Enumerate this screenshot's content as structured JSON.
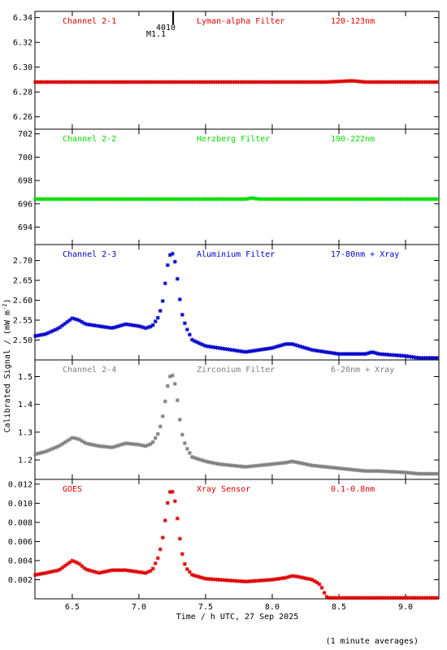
{
  "chart_data": [
    {
      "type": "scatter",
      "panel_labels": {
        "channel": "Channel 2-1",
        "filter": "Lyman-alpha Filter",
        "band": "120-123nm"
      },
      "color": "#dd0000",
      "ylim": [
        6.25,
        6.345
      ],
      "yticks": [
        6.26,
        6.28,
        6.3,
        6.32,
        6.34
      ],
      "ytick_labels": [
        "6.26",
        "6.28",
        "6.30",
        "6.32",
        "6.34"
      ],
      "series": [
        {
          "x": [
            6.22,
            8.4,
            8.6,
            8.7,
            9.25
          ],
          "y": [
            6.288,
            6.288,
            6.289,
            6.288,
            6.288
          ]
        }
      ]
    },
    {
      "type": "scatter",
      "panel_labels": {
        "channel": "Channel 2-2",
        "filter": "Herzberg Filter",
        "band": "190-222nm"
      },
      "color": "#00dd00",
      "ylim": [
        692.5,
        702.4
      ],
      "yticks": [
        694,
        696,
        698,
        700,
        702
      ],
      "ytick_labels": [
        "694",
        "696",
        "698",
        "700",
        "702"
      ],
      "series": [
        {
          "x": [
            6.22,
            7.8,
            7.85,
            7.9,
            9.25
          ],
          "y": [
            696.4,
            696.4,
            696.5,
            696.4,
            696.4
          ]
        }
      ]
    },
    {
      "type": "scatter",
      "panel_labels": {
        "channel": "Channel 2-3",
        "filter": "Aluminium Filter",
        "band": "17-80nm + Xray"
      },
      "color": "#0000cc",
      "ylim": [
        2.45,
        2.74
      ],
      "yticks": [
        2.5,
        2.55,
        2.6,
        2.65,
        2.7
      ],
      "ytick_labels": [
        "2.50",
        "2.55",
        "2.60",
        "2.65",
        "2.70"
      ],
      "series": [
        {
          "x": [
            6.22,
            6.3,
            6.4,
            6.5,
            6.55,
            6.6,
            6.7,
            6.8,
            6.9,
            7.0,
            7.05,
            7.1,
            7.15,
            7.18,
            7.2,
            7.22,
            7.24,
            7.26,
            7.28,
            7.3,
            7.32,
            7.35,
            7.4,
            7.5,
            7.6,
            7.7,
            7.8,
            7.9,
            8.0,
            8.1,
            8.15,
            8.2,
            8.3,
            8.4,
            8.5,
            8.6,
            8.7,
            8.75,
            8.8,
            9.0,
            9.1,
            9.25
          ],
          "y": [
            2.51,
            2.515,
            2.53,
            2.555,
            2.55,
            2.54,
            2.535,
            2.53,
            2.54,
            2.535,
            2.53,
            2.535,
            2.56,
            2.6,
            2.65,
            2.7,
            2.72,
            2.715,
            2.68,
            2.62,
            2.57,
            2.535,
            2.5,
            2.485,
            2.48,
            2.475,
            2.47,
            2.475,
            2.48,
            2.49,
            2.49,
            2.485,
            2.475,
            2.47,
            2.465,
            2.465,
            2.465,
            2.47,
            2.465,
            2.46,
            2.455,
            2.455
          ]
        }
      ]
    },
    {
      "type": "scatter",
      "panel_labels": {
        "channel": "Channel 2-4",
        "filter": "Zirconium Filter",
        "band": "6-20nm + Xray"
      },
      "color": "#808080",
      "ylim": [
        1.13,
        1.56
      ],
      "yticks": [
        1.2,
        1.3,
        1.4,
        1.5
      ],
      "ytick_labels": [
        "1.2",
        "1.3",
        "1.4",
        "1.5"
      ],
      "series": [
        {
          "x": [
            6.22,
            6.3,
            6.4,
            6.5,
            6.55,
            6.6,
            6.7,
            6.8,
            6.9,
            7.0,
            7.05,
            7.1,
            7.15,
            7.18,
            7.2,
            7.22,
            7.24,
            7.26,
            7.28,
            7.3,
            7.32,
            7.35,
            7.4,
            7.5,
            7.6,
            7.7,
            7.8,
            7.9,
            8.0,
            8.1,
            8.15,
            8.2,
            8.3,
            8.4,
            8.5,
            8.6,
            8.7,
            8.8,
            9.0,
            9.1,
            9.25
          ],
          "y": [
            1.22,
            1.23,
            1.25,
            1.28,
            1.275,
            1.26,
            1.25,
            1.245,
            1.26,
            1.255,
            1.25,
            1.26,
            1.3,
            1.36,
            1.42,
            1.48,
            1.51,
            1.5,
            1.45,
            1.37,
            1.3,
            1.25,
            1.21,
            1.195,
            1.185,
            1.18,
            1.175,
            1.18,
            1.185,
            1.19,
            1.195,
            1.19,
            1.18,
            1.175,
            1.17,
            1.165,
            1.16,
            1.16,
            1.155,
            1.15,
            1.15
          ]
        }
      ]
    },
    {
      "type": "scatter",
      "panel_labels": {
        "channel": "GOES",
        "filter": "Xray Sensor",
        "band": "0.1-0.8nm"
      },
      "color": "#dd0000",
      "ylim": [
        0.0,
        0.0125
      ],
      "yticks": [
        0.002,
        0.004,
        0.006,
        0.008,
        0.01,
        0.012
      ],
      "ytick_labels": [
        "0.002",
        "0.004",
        "0.006",
        "0.008",
        "0.010",
        "0.012"
      ],
      "series": [
        {
          "x": [
            6.22,
            6.3,
            6.4,
            6.5,
            6.55,
            6.6,
            6.7,
            6.8,
            6.9,
            7.0,
            7.05,
            7.1,
            7.15,
            7.18,
            7.2,
            7.22,
            7.24,
            7.26,
            7.28,
            7.3,
            7.32,
            7.35,
            7.4,
            7.5,
            7.6,
            7.7,
            7.8,
            7.9,
            8.0,
            8.1,
            8.15,
            8.2,
            8.3,
            8.35,
            8.38,
            8.4,
            8.42,
            8.5,
            9.0,
            9.25
          ],
          "y": [
            0.0025,
            0.0027,
            0.003,
            0.004,
            0.0037,
            0.0031,
            0.0027,
            0.003,
            0.003,
            0.0028,
            0.0027,
            0.003,
            0.0045,
            0.0065,
            0.0085,
            0.0105,
            0.0115,
            0.011,
            0.0095,
            0.007,
            0.005,
            0.0033,
            0.0025,
            0.0021,
            0.002,
            0.0019,
            0.0018,
            0.0019,
            0.002,
            0.0022,
            0.0024,
            0.0023,
            0.002,
            0.0016,
            0.001,
            0.0003,
            0.0001,
            0.0001,
            0.0001,
            0.0001
          ]
        }
      ]
    }
  ],
  "x_axis": {
    "xlim": [
      6.22,
      9.25
    ],
    "ticks": [
      6.5,
      7.0,
      7.5,
      8.0,
      8.5,
      9.0
    ],
    "tick_labels": [
      "6.5",
      "7.0",
      "7.5",
      "8.0",
      "8.5",
      "9.0"
    ],
    "label": "Time / h UTC, 27 Sep 2025"
  },
  "y_axis_label_main": "Calibrated Signal / (mW m",
  "y_axis_label_sup": "-2",
  "y_axis_label_end": ")",
  "marker_annotation": {
    "x": 7.22,
    "line1": "4010",
    "line2": "M1.1"
  },
  "footnote": "(1 minute averages)"
}
